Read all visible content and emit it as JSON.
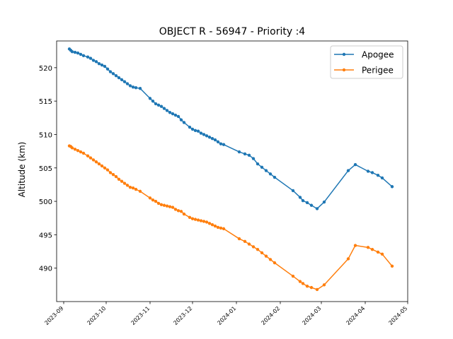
{
  "chart_data": {
    "type": "line",
    "title": "OBJECT R - 56947 - Priority :4",
    "xlabel": "",
    "ylabel": "Altitude (km)",
    "x_type": "date",
    "xlim": [
      "2023-08-27",
      "2024-05-01"
    ],
    "ylim": [
      485,
      524
    ],
    "x_ticks": [
      "2023-09-01",
      "2023-10-01",
      "2023-11-01",
      "2023-12-01",
      "2024-01-01",
      "2024-02-01",
      "2024-03-01",
      "2024-04-01",
      "2024-05-01"
    ],
    "x_tick_labels": [
      "2023-09",
      "2023-10",
      "2023-11",
      "2023-12",
      "2024-01",
      "2024-02",
      "2024-03",
      "2024-04",
      "2024-05"
    ],
    "y_ticks": [
      490,
      495,
      500,
      505,
      510,
      515,
      520
    ],
    "grid": false,
    "legend_position": "top-right",
    "series": [
      {
        "name": "Apogee",
        "color": "#1f77b4",
        "x": [
          "2023-09-05",
          "2023-09-06",
          "2023-09-07",
          "2023-09-09",
          "2023-09-11",
          "2023-09-13",
          "2023-09-15",
          "2023-09-18",
          "2023-09-20",
          "2023-09-22",
          "2023-09-24",
          "2023-09-26",
          "2023-09-28",
          "2023-09-30",
          "2023-10-02",
          "2023-10-04",
          "2023-10-06",
          "2023-10-08",
          "2023-10-10",
          "2023-10-12",
          "2023-10-14",
          "2023-10-16",
          "2023-10-18",
          "2023-10-20",
          "2023-10-22",
          "2023-10-25",
          "2023-11-01",
          "2023-11-03",
          "2023-11-05",
          "2023-11-07",
          "2023-11-09",
          "2023-11-11",
          "2023-11-13",
          "2023-11-15",
          "2023-11-17",
          "2023-11-19",
          "2023-11-21",
          "2023-11-23",
          "2023-11-25",
          "2023-11-29",
          "2023-12-01",
          "2023-12-03",
          "2023-12-05",
          "2023-12-07",
          "2023-12-09",
          "2023-12-11",
          "2023-12-13",
          "2023-12-15",
          "2023-12-17",
          "2023-12-19",
          "2023-12-21",
          "2023-12-23",
          "2024-01-03",
          "2024-01-07",
          "2024-01-10",
          "2024-01-13",
          "2024-01-16",
          "2024-01-19",
          "2024-01-22",
          "2024-01-25",
          "2024-01-28",
          "2024-02-10",
          "2024-02-15",
          "2024-02-17",
          "2024-02-20",
          "2024-02-23",
          "2024-02-27",
          "2024-03-03",
          "2024-03-20",
          "2024-03-25",
          "2024-04-03",
          "2024-04-06",
          "2024-04-10",
          "2024-04-13",
          "2024-04-20"
        ],
        "values": [
          522.8,
          522.6,
          522.4,
          522.3,
          522.2,
          522.0,
          521.8,
          521.6,
          521.4,
          521.1,
          520.9,
          520.6,
          520.4,
          520.2,
          519.8,
          519.4,
          519.1,
          518.8,
          518.5,
          518.2,
          517.9,
          517.6,
          517.3,
          517.1,
          517.0,
          516.9,
          515.4,
          515.0,
          514.6,
          514.4,
          514.2,
          513.9,
          513.6,
          513.3,
          513.1,
          512.9,
          512.7,
          512.2,
          511.8,
          511.1,
          510.8,
          510.6,
          510.5,
          510.2,
          510.0,
          509.8,
          509.6,
          509.4,
          509.2,
          508.9,
          508.6,
          508.5,
          507.4,
          507.1,
          506.9,
          506.4,
          505.6,
          505.1,
          504.6,
          504.1,
          503.6,
          501.6,
          500.6,
          500.1,
          499.8,
          499.4,
          498.9,
          499.9,
          504.6,
          505.5,
          504.5,
          504.3,
          503.9,
          503.5,
          502.2
        ]
      },
      {
        "name": "Perigee",
        "color": "#ff7f0e",
        "x": [
          "2023-09-05",
          "2023-09-06",
          "2023-09-07",
          "2023-09-09",
          "2023-09-11",
          "2023-09-13",
          "2023-09-15",
          "2023-09-18",
          "2023-09-20",
          "2023-09-22",
          "2023-09-24",
          "2023-09-26",
          "2023-09-28",
          "2023-09-30",
          "2023-10-02",
          "2023-10-04",
          "2023-10-06",
          "2023-10-08",
          "2023-10-10",
          "2023-10-12",
          "2023-10-14",
          "2023-10-16",
          "2023-10-18",
          "2023-10-20",
          "2023-10-22",
          "2023-10-25",
          "2023-11-01",
          "2023-11-03",
          "2023-11-05",
          "2023-11-07",
          "2023-11-09",
          "2023-11-11",
          "2023-11-13",
          "2023-11-15",
          "2023-11-17",
          "2023-11-19",
          "2023-11-21",
          "2023-11-23",
          "2023-11-25",
          "2023-11-29",
          "2023-12-01",
          "2023-12-03",
          "2023-12-05",
          "2023-12-07",
          "2023-12-09",
          "2023-12-11",
          "2023-12-13",
          "2023-12-15",
          "2023-12-17",
          "2023-12-19",
          "2023-12-21",
          "2023-12-23",
          "2024-01-03",
          "2024-01-07",
          "2024-01-10",
          "2024-01-13",
          "2024-01-16",
          "2024-01-19",
          "2024-01-22",
          "2024-01-25",
          "2024-01-28",
          "2024-02-10",
          "2024-02-15",
          "2024-02-17",
          "2024-02-20",
          "2024-02-23",
          "2024-02-27",
          "2024-03-03",
          "2024-03-20",
          "2024-03-25",
          "2024-04-03",
          "2024-04-06",
          "2024-04-10",
          "2024-04-13",
          "2024-04-20"
        ],
        "values": [
          508.3,
          508.2,
          508.0,
          507.8,
          507.6,
          507.4,
          507.2,
          506.8,
          506.5,
          506.2,
          505.9,
          505.6,
          505.3,
          505.0,
          504.7,
          504.3,
          504.0,
          503.7,
          503.3,
          503.0,
          502.7,
          502.4,
          502.1,
          502.0,
          501.8,
          501.5,
          500.5,
          500.2,
          500.0,
          499.7,
          499.5,
          499.4,
          499.3,
          499.2,
          499.1,
          498.8,
          498.6,
          498.5,
          498.1,
          497.6,
          497.4,
          497.3,
          497.2,
          497.1,
          497.0,
          496.9,
          496.7,
          496.5,
          496.3,
          496.1,
          496.0,
          495.9,
          494.4,
          494.0,
          493.6,
          493.2,
          492.8,
          492.3,
          491.8,
          491.3,
          490.8,
          488.8,
          488.0,
          487.7,
          487.3,
          487.1,
          486.8,
          487.5,
          491.4,
          493.4,
          493.1,
          492.8,
          492.4,
          492.1,
          490.3
        ]
      }
    ]
  }
}
